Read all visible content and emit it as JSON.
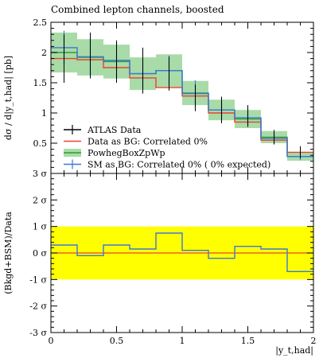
{
  "chart_data": [
    {
      "type": "line",
      "title": "Combined lepton channels, boosted",
      "ylabel": "dσ / d|y_t,had| [pb]",
      "xlabel": "",
      "xlim": [
        0,
        2
      ],
      "ylim": [
        0,
        2.5
      ],
      "yticks": [
        "0.5",
        "1",
        "1.5",
        "2",
        "2.5"
      ],
      "bin_edges": [
        0,
        0.2,
        0.4,
        0.6,
        0.8,
        1.0,
        1.2,
        1.4,
        1.6,
        1.8,
        2.0
      ],
      "series": [
        {
          "name": "ATLAS Data",
          "color": "#000000",
          "style": "points",
          "x": [
            0.1,
            0.3,
            0.5,
            0.7,
            0.9,
            1.1,
            1.3,
            1.5,
            1.7,
            1.9
          ],
          "y": [
            1.9,
            1.95,
            1.85,
            1.7,
            1.65,
            1.25,
            1.05,
            0.95,
            0.6,
            0.35
          ],
          "err": [
            0.4,
            0.38,
            0.35,
            0.38,
            0.28,
            0.22,
            0.22,
            0.18,
            0.12,
            0.1
          ]
        },
        {
          "name": "Data as BG: Correlated 0%",
          "color": "#e8432e",
          "style": "step",
          "values": [
            1.9,
            1.88,
            1.75,
            1.58,
            1.42,
            1.28,
            1.0,
            0.85,
            0.55,
            0.35
          ]
        },
        {
          "name": "PowhegBoxZpWp",
          "color": "#2ca02c",
          "band_color": "#a8dba8",
          "style": "band",
          "values": [
            2.0,
            1.92,
            1.85,
            1.65,
            1.7,
            1.33,
            1.05,
            0.9,
            0.6,
            0.28
          ],
          "err": [
            0.33,
            0.3,
            0.28,
            0.27,
            0.27,
            0.2,
            0.17,
            0.15,
            0.1,
            0.07
          ]
        },
        {
          "name": "SM as BG: Correlated 0% ( 0% expected)",
          "color": "#3c78d8",
          "style": "step_with_errors",
          "values": [
            2.08,
            1.93,
            1.87,
            1.65,
            1.7,
            1.32,
            1.05,
            0.92,
            0.58,
            0.28
          ],
          "err": [
            0.28,
            0.3,
            0.3,
            0.25,
            0.25,
            0.22,
            0.18,
            0.15,
            0.1,
            0.06
          ]
        }
      ],
      "legend_position": "bottom-left"
    },
    {
      "type": "line",
      "ylabel": "(Bkgd+BSM)/Data",
      "xlabel": "|y_t,had|",
      "xlim": [
        0,
        2
      ],
      "ylim": [
        -3,
        3
      ],
      "xticks": [
        "0",
        "0.5",
        "1",
        "1.5",
        "2"
      ],
      "yticks": [
        "-3 σ",
        "-2 σ",
        "-1 σ",
        "0 σ",
        "1 σ",
        "2 σ",
        "3 σ"
      ],
      "band": {
        "from": -1,
        "to": 1,
        "color": "#ffff00"
      },
      "series": [
        {
          "name": "Data as BG: Correlated 0%",
          "color": "#e8432e",
          "style": "line",
          "values": [
            0,
            0,
            0,
            0,
            0,
            0,
            0,
            0,
            0,
            0
          ]
        },
        {
          "name": "SM as BG: Correlated 0% ( 0% expected)",
          "color": "#3c78d8",
          "style": "step",
          "values": [
            0.3,
            -0.1,
            0.3,
            0.15,
            0.75,
            0.1,
            -0.2,
            0.25,
            0.15,
            -0.7
          ]
        }
      ]
    }
  ]
}
